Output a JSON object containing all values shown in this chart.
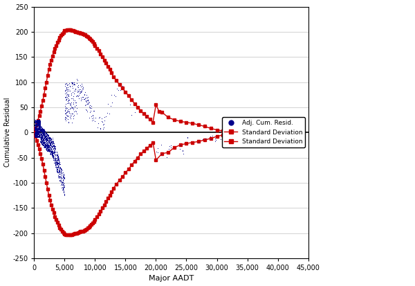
{
  "xlabel": "Major AADT",
  "ylabel": "Cumulative Residual",
  "xlim": [
    0,
    45000
  ],
  "ylim": [
    -250,
    250
  ],
  "xticks": [
    0,
    5000,
    10000,
    15000,
    20000,
    25000,
    30000,
    35000,
    40000,
    45000
  ],
  "yticks": [
    -250,
    -200,
    -150,
    -100,
    -50,
    0,
    50,
    100,
    150,
    200,
    250
  ],
  "dot_color": "#00008B",
  "sd_color": "#CC0000",
  "background_color": "#ffffff",
  "legend_labels": [
    "Adj. Cum. Resid.",
    "Standard Deviation",
    "Standard Deviation"
  ],
  "upper_sd_x": [
    0,
    200,
    400,
    600,
    800,
    1000,
    1200,
    1400,
    1600,
    1800,
    2000,
    2200,
    2400,
    2600,
    2800,
    3000,
    3200,
    3400,
    3600,
    3800,
    4000,
    4200,
    4400,
    4600,
    4800,
    5000,
    5200,
    5400,
    5600,
    5800,
    6000,
    6200,
    6400,
    6600,
    6800,
    7000,
    7200,
    7400,
    7600,
    7800,
    8000,
    8200,
    8400,
    8600,
    8800,
    9000,
    9200,
    9400,
    9600,
    9800,
    10000,
    10300,
    10600,
    10900,
    11200,
    11500,
    11800,
    12100,
    12400,
    12700,
    13000,
    13500,
    14000,
    14500,
    15000,
    15500,
    16000,
    16500,
    17000,
    17500,
    18000,
    18500,
    19000,
    19500,
    20000,
    20500,
    21000,
    22000,
    23000,
    24000,
    25000,
    26000,
    27000,
    28000,
    29000,
    30000,
    31000,
    32000,
    33000,
    34000,
    35000,
    36000,
    37000,
    38000,
    39000,
    40000
  ],
  "upper_sd_y": [
    0,
    8,
    16,
    24,
    33,
    42,
    52,
    63,
    75,
    88,
    100,
    113,
    125,
    135,
    144,
    152,
    160,
    167,
    173,
    179,
    184,
    189,
    193,
    196,
    199,
    202,
    203,
    204,
    204,
    204,
    204,
    203,
    202,
    201,
    200,
    200,
    199,
    198,
    197,
    197,
    196,
    195,
    194,
    192,
    190,
    188,
    186,
    183,
    180,
    177,
    173,
    167,
    162,
    156,
    150,
    144,
    138,
    131,
    125,
    118,
    111,
    103,
    95,
    88,
    80,
    73,
    65,
    57,
    50,
    43,
    37,
    32,
    26,
    20,
    55,
    42,
    40,
    30,
    25,
    22,
    20,
    18,
    15,
    12,
    8,
    5,
    3,
    2,
    1,
    0,
    0,
    0,
    0,
    0,
    0,
    0
  ],
  "lower_sd_x": [
    0,
    200,
    400,
    600,
    800,
    1000,
    1200,
    1400,
    1600,
    1800,
    2000,
    2200,
    2400,
    2600,
    2800,
    3000,
    3200,
    3400,
    3600,
    3800,
    4000,
    4200,
    4400,
    4600,
    4800,
    5000,
    5200,
    5400,
    5600,
    5800,
    6000,
    6200,
    6400,
    6600,
    6800,
    7000,
    7200,
    7400,
    7600,
    7800,
    8000,
    8200,
    8400,
    8600,
    8800,
    9000,
    9200,
    9400,
    9600,
    9800,
    10000,
    10300,
    10600,
    10900,
    11200,
    11500,
    11800,
    12100,
    12400,
    12700,
    13000,
    13500,
    14000,
    14500,
    15000,
    15500,
    16000,
    16500,
    17000,
    17500,
    18000,
    18500,
    19000,
    19500,
    20000,
    21000,
    22000,
    23000,
    24000,
    25000,
    26000,
    27000,
    28000,
    29000,
    30000,
    31000,
    32000,
    33000,
    34000,
    35000,
    36000,
    37000,
    38000,
    39000,
    40000
  ],
  "lower_sd_y": [
    0,
    -8,
    -16,
    -24,
    -33,
    -42,
    -52,
    -63,
    -75,
    -88,
    -100,
    -113,
    -125,
    -135,
    -144,
    -152,
    -160,
    -167,
    -173,
    -179,
    -184,
    -189,
    -193,
    -196,
    -199,
    -202,
    -203,
    -204,
    -204,
    -204,
    -204,
    -203,
    -202,
    -201,
    -200,
    -200,
    -199,
    -198,
    -197,
    -197,
    -196,
    -195,
    -194,
    -192,
    -190,
    -188,
    -186,
    -183,
    -180,
    -177,
    -173,
    -167,
    -162,
    -156,
    -150,
    -144,
    -138,
    -131,
    -125,
    -118,
    -111,
    -103,
    -95,
    -88,
    -80,
    -73,
    -65,
    -57,
    -50,
    -43,
    -37,
    -32,
    -26,
    -20,
    -55,
    -42,
    -40,
    -30,
    -25,
    -22,
    -20,
    -18,
    -15,
    -12,
    -8,
    -5,
    -3,
    -2,
    -1,
    0,
    0,
    0,
    0,
    0,
    0
  ]
}
